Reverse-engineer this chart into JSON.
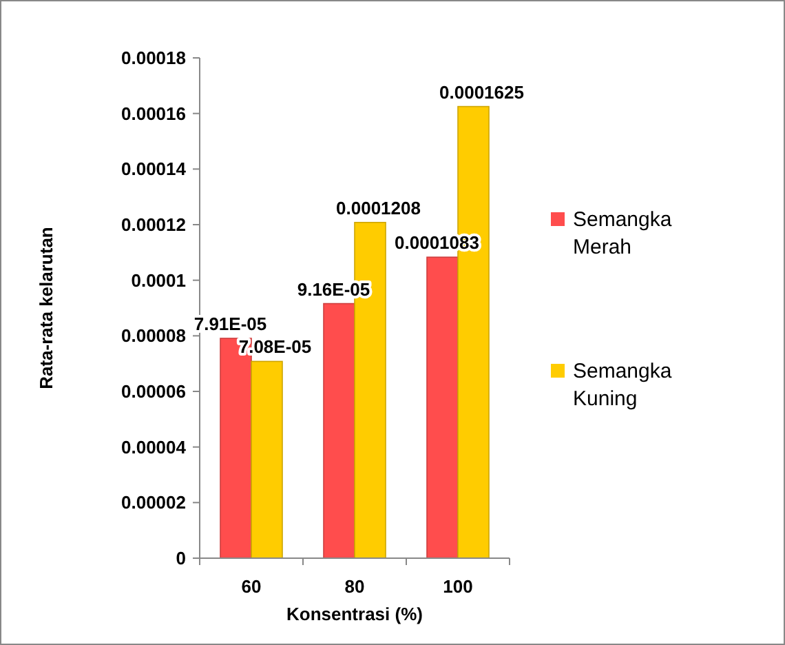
{
  "chart_data": {
    "type": "bar",
    "xlabel": "Konsentrasi (%)",
    "ylabel": "Rata-rata kelarutan",
    "categories": [
      "60",
      "80",
      "100"
    ],
    "series": [
      {
        "name": "Semangka Merah",
        "color": "#ff4d4d",
        "values": [
          7.91e-05,
          9.16e-05,
          0.0001083
        ],
        "value_labels": [
          "7.91E-05",
          "9.16E-05",
          "0.0001083"
        ]
      },
      {
        "name": "Semangka Kuning",
        "color": "#ffcc00",
        "values": [
          7.08e-05,
          0.0001208,
          0.0001625
        ],
        "value_labels": [
          "7.08E-05",
          "0.0001208",
          "0.0001625"
        ]
      }
    ],
    "ylim": [
      0,
      0.00018
    ],
    "yticks": [
      0,
      {
        "value": 2e-05,
        "label": "0.00002"
      },
      {
        "value": 4e-05,
        "label": "0.00004"
      },
      {
        "value": 6e-05,
        "label": "0.00006"
      },
      {
        "value": 8e-05,
        "label": "0.00008"
      },
      0.0001,
      0.00012,
      0.00014,
      0.00016,
      0.00018
    ],
    "grid": false,
    "legend": "right"
  }
}
